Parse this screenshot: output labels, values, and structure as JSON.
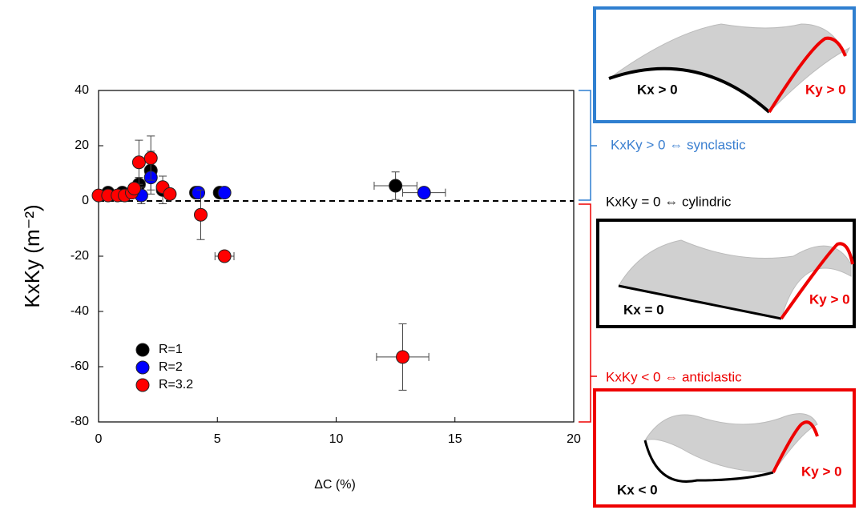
{
  "chart_data": {
    "type": "scatter",
    "xlabel": "ΔC (%)",
    "ylabel": "KxKy (m⁻²)",
    "xlim": [
      0,
      20
    ],
    "xticks": [
      0,
      5,
      10,
      15,
      20
    ],
    "ylim": [
      -80,
      40
    ],
    "yticks": [
      -80,
      -60,
      -40,
      -20,
      0,
      20,
      40
    ],
    "hline": 0,
    "legend": "lower left",
    "series": [
      {
        "name": "R=1",
        "color": "#000000",
        "x": [
          0.4,
          1.0,
          1.7,
          2.2,
          2.7,
          4.1,
          5.1,
          12.5
        ],
        "values": [
          3,
          3,
          6,
          11,
          4,
          3,
          3,
          5.5
        ],
        "yerr": [
          0,
          0,
          2.5,
          7,
          5,
          0,
          0,
          5
        ],
        "xerr": [
          0,
          0,
          0,
          0,
          0,
          0,
          0,
          0.9
        ]
      },
      {
        "name": "R=2",
        "color": "#0000ff",
        "x": [
          1.8,
          2.2,
          4.2,
          5.3,
          13.7
        ],
        "values": [
          2,
          8.5,
          3,
          3,
          3
        ],
        "yerr": [
          3,
          6,
          0,
          0,
          0
        ],
        "xerr": [
          0,
          0,
          0,
          0,
          0.9
        ]
      },
      {
        "name": "R=3.2",
        "color": "#ff0000",
        "x": [
          0,
          0.4,
          0.8,
          1.1,
          1.4,
          1.5,
          1.7,
          2.2,
          2.7,
          3.0,
          4.3,
          5.3,
          12.8
        ],
        "values": [
          2,
          2,
          2,
          2,
          3,
          4.5,
          14,
          15.5,
          5,
          2.5,
          -5,
          -20,
          -56.5
        ],
        "yerr": [
          0,
          0,
          0,
          0,
          0,
          0,
          8,
          8,
          0,
          0,
          9,
          1,
          12
        ],
        "xerr": [
          0,
          0,
          0,
          0,
          0,
          0,
          0,
          0,
          0,
          0,
          0,
          0.4,
          1.1
        ]
      }
    ],
    "annotations": [
      "KxKy > 0 ⇔ synclastic",
      "KxKy = 0 ⇔ cylindric",
      "KxKy < 0 ⇔ anticlastic"
    ],
    "diagram_labels": [
      "Kx > 0",
      "Ky > 0",
      "Kx = 0",
      "Ky > 0",
      "Kx < 0",
      "Ky > 0"
    ]
  }
}
